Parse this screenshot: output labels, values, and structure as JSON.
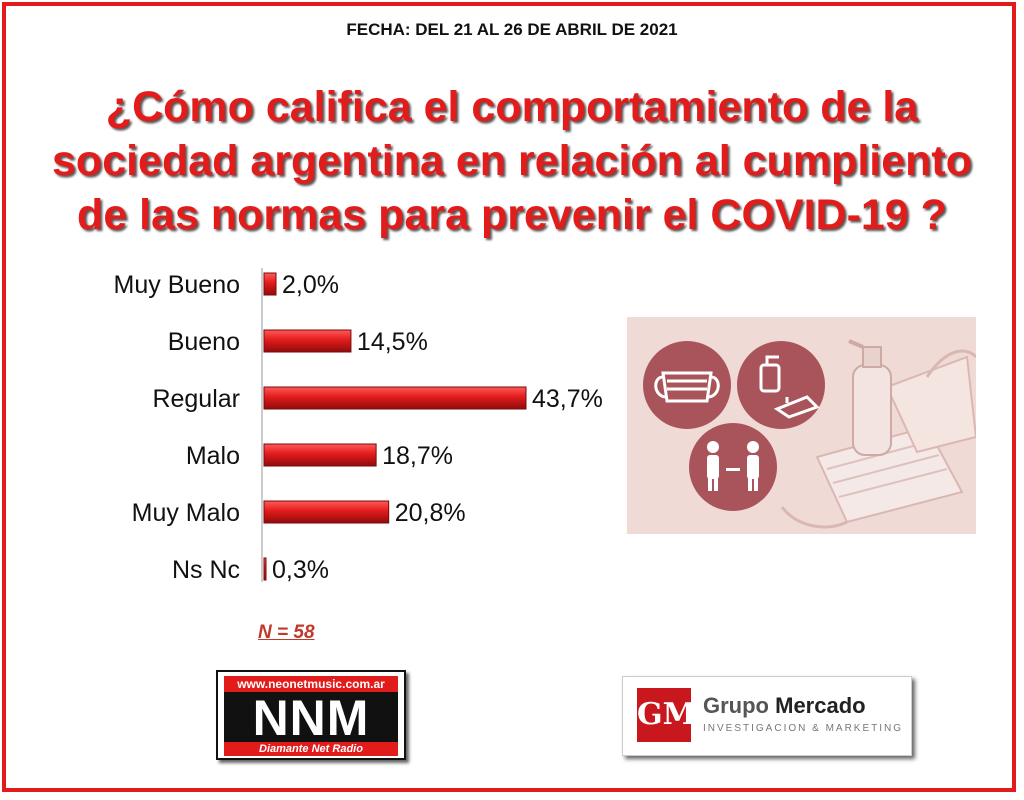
{
  "header": {
    "date": "FECHA: DEL 21 AL 26 DE ABRIL DE 2021",
    "question_line1": "¿Cómo califica el comportamiento de la",
    "question_line2": "sociedad argentina en relación al cumpliento",
    "question_line3": "de las normas para prevenir el COVID-19 ?"
  },
  "chart_data": {
    "type": "bar",
    "orientation": "horizontal",
    "categories": [
      "Muy Bueno",
      "Bueno",
      "Regular",
      "Malo",
      "Muy Malo",
      "Ns Nc"
    ],
    "values": [
      2.0,
      14.5,
      43.7,
      18.7,
      20.8,
      0.3
    ],
    "value_labels": [
      "2,0%",
      "14,5%",
      "43,7%",
      "18,7%",
      "20,8%",
      "0,3%"
    ],
    "unit": "%",
    "title": "",
    "xlabel": "",
    "ylabel": "",
    "xlim": [
      0,
      45
    ],
    "grid": false,
    "bar_color": "#e21b1b"
  },
  "sample_size": "N = 58",
  "logos": {
    "nnm_url": "www.neonetmusic.com.ar",
    "nnm_name": "NNM",
    "nnm_radio": "Diamante Net Radio",
    "gm_mark": "GM",
    "gm_name_1": "Grupo",
    "gm_name_2": "Mercado",
    "gm_tagline": "INVESTIGACION & MARKETING"
  },
  "colors": {
    "accent": "#e21b1b",
    "photo_tint": "#e8c7c4",
    "circle": "#a8545a"
  }
}
